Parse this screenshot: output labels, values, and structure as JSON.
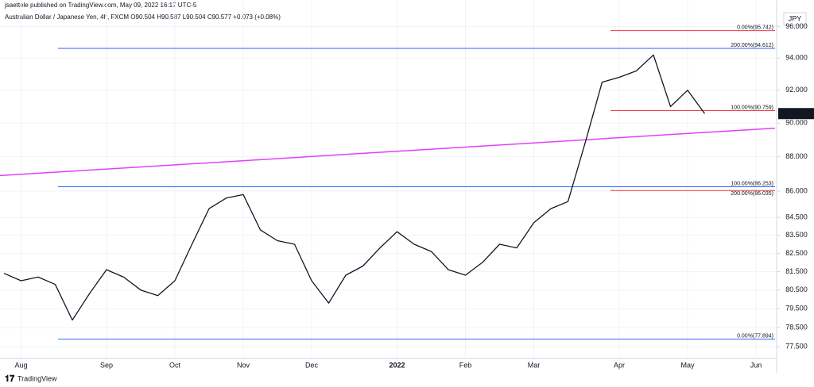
{
  "header": "jsaettele published on TradingView.com, May 09, 2022 16:17 UTC-5",
  "footer": "TradingView",
  "chart_data": {
    "type": "line",
    "title": "Australian Dollar / Japanese Yen, 4h, FXCM O90.504 H90.587 L90.504 C90.577 +0.073 (+0.08%)",
    "currency": "JPY",
    "log_scale": true,
    "grid": true,
    "categories": [
      null,
      "Aug",
      null,
      null,
      null,
      null,
      "Sep",
      null,
      null,
      null,
      "Oct",
      null,
      null,
      null,
      "Nov",
      null,
      null,
      null,
      "Dec",
      null,
      null,
      null,
      null,
      "2022",
      null,
      null,
      null,
      "Feb",
      null,
      null,
      null,
      "Mar",
      null,
      null,
      null,
      null,
      "Apr",
      null,
      null,
      null,
      "May",
      null,
      null,
      null,
      "Jun"
    ],
    "series": [
      {
        "name": "AUDJPY",
        "color": "#131722",
        "values": [
          81.4,
          81.0,
          81.2,
          80.8,
          78.9,
          80.3,
          81.6,
          81.2,
          80.5,
          80.2,
          81.0,
          83.0,
          85.0,
          85.6,
          85.8,
          83.8,
          83.2,
          83.0,
          81.0,
          79.8,
          81.3,
          81.8,
          82.8,
          83.7,
          83.0,
          82.6,
          81.6,
          81.3,
          82.0,
          83.0,
          82.8,
          84.2,
          85.0,
          85.4,
          88.8,
          92.5,
          92.8,
          93.2,
          94.2,
          91.0,
          92.0,
          90.577,
          null,
          null,
          null
        ]
      }
    ],
    "ylim": [
      76.9,
      97.0
    ],
    "yticks": [
      {
        "value": 96,
        "label": "96.000"
      },
      {
        "value": 94,
        "label": "94.000"
      },
      {
        "value": 92,
        "label": "92.000"
      },
      {
        "value": 90,
        "label": "90.000"
      },
      {
        "value": 88,
        "label": "88.000"
      },
      {
        "value": 86,
        "label": "86.000"
      },
      {
        "value": 84.5,
        "label": "84.500"
      },
      {
        "value": 83.5,
        "label": "83.500"
      },
      {
        "value": 82.5,
        "label": "82.500"
      },
      {
        "value": 81.5,
        "label": "81.500"
      },
      {
        "value": 80.5,
        "label": "80.500"
      },
      {
        "value": 79.5,
        "label": "79.500"
      },
      {
        "value": 78.5,
        "label": "78.500"
      },
      {
        "value": 77.5,
        "label": "77.500"
      }
    ],
    "levels": [
      {
        "value": 94.612,
        "label": "200.00%(94.612)",
        "color": "#2962ff",
        "group": "blue"
      },
      {
        "value": 86.253,
        "label": "100.00%(86.253)",
        "color": "#2962ff",
        "group": "blue"
      },
      {
        "value": 77.894,
        "label": "0.00%(77.894)",
        "color": "#2962ff",
        "group": "blue"
      },
      {
        "value": 95.742,
        "label": "0.00%(95.742)",
        "color": "#f23645",
        "group": "red"
      },
      {
        "value": 90.759,
        "label": "100.00%(90.759)",
        "color": "#f23645",
        "group": "red"
      },
      {
        "value": 86.035,
        "label": "200.00%(86.035)",
        "color": "#f23645",
        "group": "red"
      }
    ],
    "trendline": {
      "color": "#e040fb",
      "values": [
        86.9,
        89.7
      ]
    }
  }
}
